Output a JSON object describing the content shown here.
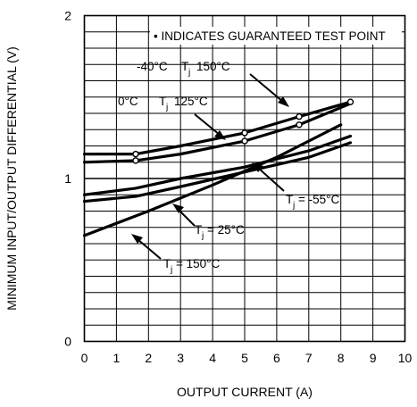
{
  "chart_data": {
    "type": "line",
    "title": "",
    "xlabel": "OUTPUT CURRENT (A)",
    "ylabel": "MINIMUM INPUT/OUTPUT DIFFERENTIAL (V)",
    "xlim": [
      0,
      10
    ],
    "ylim": [
      0,
      2
    ],
    "x_ticks": [
      "0",
      "1",
      "2",
      "3",
      "4",
      "5",
      "6",
      "7",
      "8",
      "9",
      "10"
    ],
    "y_ticks": [
      "0",
      "1",
      "2"
    ],
    "grid": true,
    "series": [
      {
        "name": "",
        "x": [
          0,
          1.6,
          3.0,
          5.0,
          6.7,
          8.3
        ],
        "y": [
          1.15,
          1.15,
          1.2,
          1.28,
          1.38,
          1.47
        ]
      },
      {
        "name": "",
        "x": [
          0,
          1.6,
          3.0,
          5.0,
          6.7,
          8.3
        ],
        "y": [
          1.1,
          1.11,
          1.15,
          1.23,
          1.33,
          1.46
        ]
      },
      {
        "name": "",
        "x": [
          0,
          1.6,
          3.0,
          5.0,
          7.0,
          8.3
        ],
        "y": [
          0.9,
          0.94,
          1.0,
          1.07,
          1.17,
          1.26
        ]
      },
      {
        "name": "",
        "x": [
          0,
          1.6,
          3.0,
          5.0,
          7.0,
          8.3
        ],
        "y": [
          0.86,
          0.89,
          0.95,
          1.04,
          1.13,
          1.22
        ]
      },
      {
        "name": "",
        "x": [
          0,
          2.0,
          4.0,
          6.0,
          8.0
        ],
        "y": [
          0.65,
          0.8,
          0.96,
          1.13,
          1.33
        ]
      }
    ],
    "marked_points": [
      {
        "x": 1.6,
        "y": 1.15
      },
      {
        "x": 5.0,
        "y": 1.28
      },
      {
        "x": 6.7,
        "y": 1.38
      },
      {
        "x": 8.3,
        "y": 1.47
      },
      {
        "x": 1.6,
        "y": 1.11
      },
      {
        "x": 5.0,
        "y": 1.23
      },
      {
        "x": 6.7,
        "y": 1.33
      }
    ],
    "annotations": {
      "legend_note": "• INDICATES GUARANTEED TEST POINT",
      "label_neg40": "-40°C",
      "label_150": "150°C",
      "label_0": "0°C",
      "label_125": "125°C",
      "label_neg55": "= -55°C",
      "label_25": "= 25°C",
      "label_150b": "= 150°C",
      "tj_T": "T",
      "tj_sub": "j"
    }
  }
}
